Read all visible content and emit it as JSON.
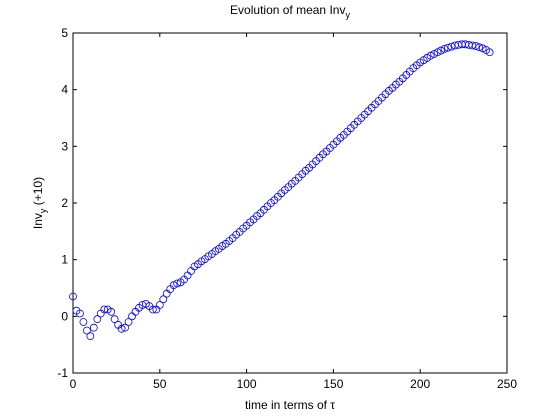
{
  "chart_data": {
    "type": "scatter",
    "title": [
      "Evolution of mean Inv",
      "y"
    ],
    "xlabel": "time in terms of τ",
    "ylabel": [
      "Inv",
      "y",
      " (+10)"
    ],
    "color": "#0000ff",
    "xlim": [
      0,
      250
    ],
    "xticks": [
      0,
      50,
      100,
      150,
      200,
      250
    ],
    "ylim": [
      -1,
      5
    ],
    "yticks": [
      -1,
      0,
      1,
      2,
      3,
      4,
      5
    ],
    "x": [
      0,
      2,
      4,
      6,
      8,
      10,
      12,
      14,
      16,
      18,
      20,
      22,
      24,
      26,
      28,
      30,
      32,
      34,
      36,
      38,
      40,
      42,
      44,
      46,
      48,
      50,
      52,
      54,
      56,
      58,
      60,
      62,
      64,
      66,
      68,
      70,
      72,
      74,
      76,
      78,
      80,
      82,
      84,
      86,
      88,
      90,
      92,
      94,
      96,
      98,
      100,
      102,
      104,
      106,
      108,
      110,
      112,
      114,
      116,
      118,
      120,
      122,
      124,
      126,
      128,
      130,
      132,
      134,
      136,
      138,
      140,
      142,
      144,
      146,
      148,
      150,
      152,
      154,
      156,
      158,
      160,
      162,
      164,
      166,
      168,
      170,
      172,
      174,
      176,
      178,
      180,
      182,
      184,
      186,
      188,
      190,
      192,
      194,
      196,
      198,
      200,
      202,
      204,
      206,
      208,
      210,
      212,
      214,
      216,
      218,
      220,
      222,
      224,
      226,
      228,
      230,
      232,
      234,
      236,
      238,
      240
    ],
    "values": [
      0.35,
      0.1,
      0.05,
      -0.1,
      -0.25,
      -0.35,
      -0.2,
      -0.05,
      0.05,
      0.12,
      0.12,
      0.08,
      -0.05,
      -0.15,
      -0.22,
      -0.2,
      -0.1,
      0.0,
      0.08,
      0.15,
      0.2,
      0.22,
      0.18,
      0.12,
      0.12,
      0.2,
      0.3,
      0.4,
      0.48,
      0.55,
      0.58,
      0.6,
      0.65,
      0.72,
      0.8,
      0.88,
      0.92,
      0.97,
      1.01,
      1.06,
      1.1,
      1.15,
      1.19,
      1.24,
      1.28,
      1.33,
      1.38,
      1.44,
      1.49,
      1.55,
      1.6,
      1.66,
      1.71,
      1.77,
      1.82,
      1.88,
      1.94,
      2.0,
      2.05,
      2.11,
      2.17,
      2.23,
      2.28,
      2.34,
      2.39,
      2.45,
      2.51,
      2.57,
      2.62,
      2.68,
      2.74,
      2.8,
      2.86,
      2.91,
      2.97,
      3.03,
      3.09,
      3.15,
      3.2,
      3.26,
      3.32,
      3.38,
      3.44,
      3.5,
      3.56,
      3.62,
      3.68,
      3.74,
      3.8,
      3.86,
      3.92,
      3.98,
      4.03,
      4.09,
      4.14,
      4.2,
      4.26,
      4.32,
      4.38,
      4.43,
      4.48,
      4.52,
      4.56,
      4.6,
      4.63,
      4.66,
      4.69,
      4.72,
      4.74,
      4.76,
      4.78,
      4.79,
      4.8,
      4.8,
      4.79,
      4.78,
      4.77,
      4.75,
      4.73,
      4.7,
      4.66
    ]
  }
}
